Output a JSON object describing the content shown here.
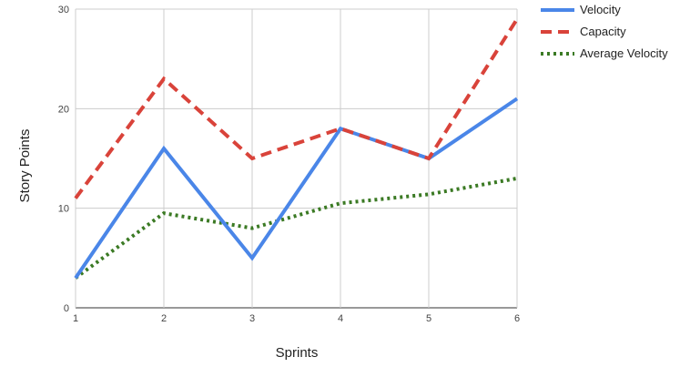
{
  "chart_data": {
    "type": "line",
    "x": [
      1,
      2,
      3,
      4,
      5,
      6
    ],
    "xlabel": "Sprints",
    "ylabel": "Story Points",
    "xlim": [
      1,
      6
    ],
    "ylim": [
      0,
      30
    ],
    "xticks": [
      "1",
      "2",
      "3",
      "4",
      "5",
      "6"
    ],
    "yticks": [
      "0",
      "10",
      "20",
      "30"
    ],
    "grid": true,
    "legend_position": "top-right",
    "series": [
      {
        "name": "Velocity",
        "values": [
          3,
          16,
          5,
          18,
          15,
          21
        ],
        "color": "#4a86e8",
        "style": "solid"
      },
      {
        "name": "Capacity",
        "values": [
          11,
          23,
          15,
          18,
          15,
          29
        ],
        "color": "#d9433a",
        "style": "dashed"
      },
      {
        "name": "Average Velocity",
        "values": [
          3,
          9.5,
          8,
          10.5,
          11.4,
          13
        ],
        "color": "#3b7a24",
        "style": "dotted"
      }
    ]
  }
}
